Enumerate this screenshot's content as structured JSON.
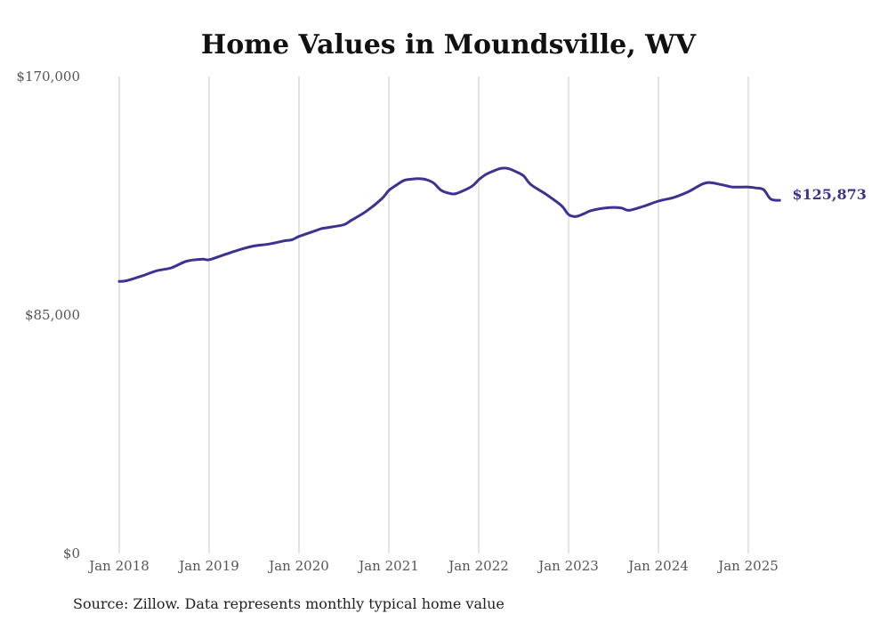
{
  "chart_data": {
    "type": "line",
    "title": "Home Values in Moundsville, WV",
    "xlabel": "",
    "ylabel": "",
    "ylim": [
      0,
      170000
    ],
    "yticks": [
      {
        "value": 0,
        "label": "$0"
      },
      {
        "value": 85000,
        "label": "$85,000"
      },
      {
        "value": 170000,
        "label": "$170,000"
      }
    ],
    "xticks": [
      {
        "value": 2018.0,
        "label": "Jan 2018"
      },
      {
        "value": 2019.0,
        "label": "Jan 2019"
      },
      {
        "value": 2020.0,
        "label": "Jan 2020"
      },
      {
        "value": 2021.0,
        "label": "Jan 2021"
      },
      {
        "value": 2022.0,
        "label": "Jan 2022"
      },
      {
        "value": 2023.0,
        "label": "Jan 2023"
      },
      {
        "value": 2024.0,
        "label": "Jan 2024"
      },
      {
        "value": 2025.0,
        "label": "Jan 2025"
      }
    ],
    "xlim": [
      2018.0,
      2025.35
    ],
    "grid": "vertical",
    "color": "#3b3392",
    "end_label": "$125,873",
    "series": [
      {
        "x": [
          2018.0,
          2018.08,
          2018.25,
          2018.42,
          2018.58,
          2018.75,
          2018.92,
          2019.0,
          2019.17,
          2019.33,
          2019.5,
          2019.67,
          2019.83,
          2019.92,
          2020.0,
          2020.17,
          2020.25,
          2020.33,
          2020.5,
          2020.58,
          2020.75,
          2020.92,
          2021.0,
          2021.08,
          2021.17,
          2021.25,
          2021.33,
          2021.42,
          2021.5,
          2021.58,
          2021.67,
          2021.75,
          2021.92,
          2022.0,
          2022.08,
          2022.17,
          2022.25,
          2022.33,
          2022.42,
          2022.5,
          2022.58,
          2022.75,
          2022.92,
          2023.0,
          2023.08,
          2023.17,
          2023.25,
          2023.42,
          2023.58,
          2023.67,
          2023.83,
          2024.0,
          2024.17,
          2024.33,
          2024.42,
          2024.5,
          2024.58,
          2024.75,
          2024.83,
          2025.0,
          2025.08,
          2025.17,
          2025.25,
          2025.35
        ],
        "y": [
          97000,
          97200,
          98900,
          100800,
          101800,
          104200,
          104900,
          104700,
          106500,
          108200,
          109600,
          110300,
          111400,
          111800,
          113000,
          114900,
          115800,
          116200,
          117200,
          118700,
          122000,
          126400,
          129400,
          131200,
          133000,
          133400,
          133600,
          133200,
          132000,
          129500,
          128400,
          128300,
          130800,
          133200,
          135100,
          136400,
          137300,
          137200,
          136000,
          134600,
          131500,
          128000,
          124000,
          120800,
          120100,
          121100,
          122200,
          123200,
          123200,
          122300,
          123700,
          125600,
          126900,
          128900,
          130500,
          131800,
          132200,
          131100,
          130600,
          130600,
          130300,
          129700,
          126300,
          125873
        ]
      }
    ]
  },
  "source_text": "Source: Zillow. Data represents monthly typical home value"
}
